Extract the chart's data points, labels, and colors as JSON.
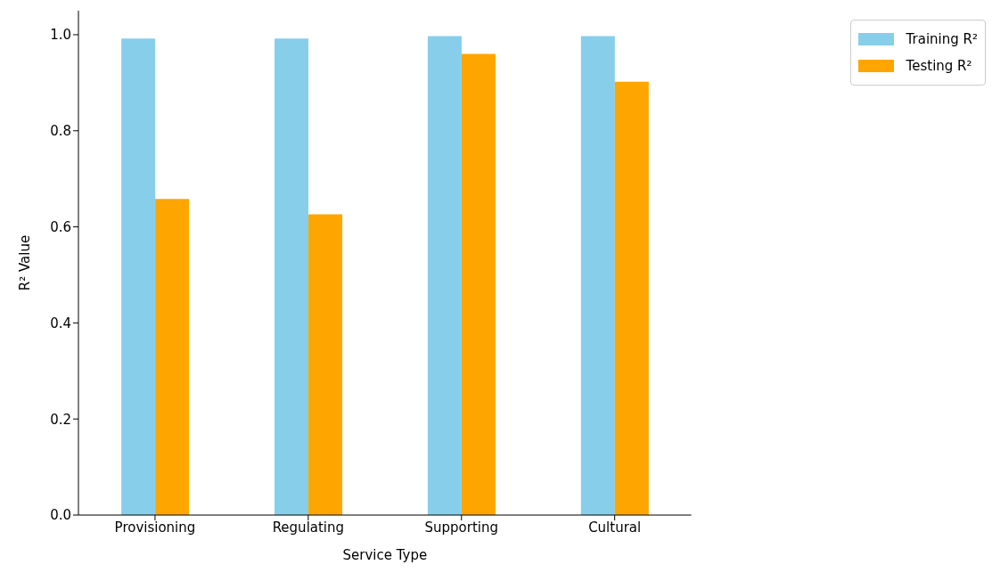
{
  "chart_data": {
    "type": "bar",
    "xlabel": "Service Type",
    "ylabel": "R² Value",
    "categories": [
      "Provisioning",
      "Regulating",
      "Supporting",
      "Cultural"
    ],
    "series": [
      {
        "name": "Training R²",
        "color": "#87ceeb",
        "values": [
          0.992,
          0.992,
          0.997,
          0.997
        ]
      },
      {
        "name": "Testing R²",
        "color": "#ffa500",
        "values": [
          0.658,
          0.626,
          0.96,
          0.902
        ]
      }
    ],
    "ylim": [
      0,
      1.05
    ],
    "yticks": [
      {
        "value": 0,
        "label": "0.0"
      },
      {
        "value": 0.2,
        "label": "0.2"
      },
      {
        "value": 0.4,
        "label": "0.4"
      },
      {
        "value": 0.6,
        "label": "0.6"
      },
      {
        "value": 0.8,
        "label": "0.8"
      },
      {
        "value": 1,
        "label": "1.0"
      }
    ],
    "grid": false,
    "legend": "top right"
  }
}
